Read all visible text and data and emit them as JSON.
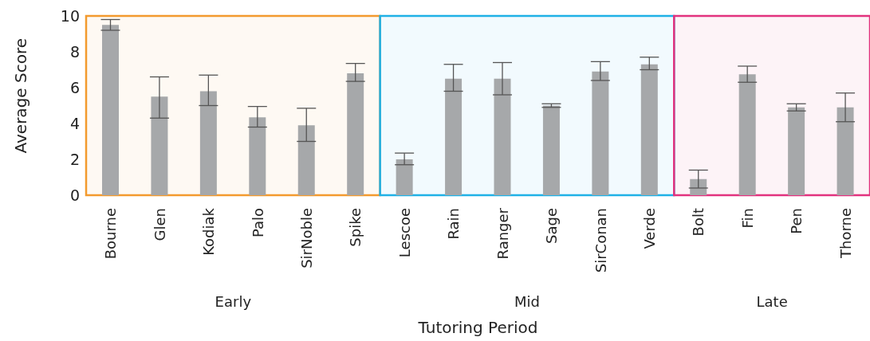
{
  "chart_data": {
    "type": "bar",
    "xlabel": "Tutoring Period",
    "ylabel": "Average Score",
    "categories": [
      "Bourne",
      "Glen",
      "Kodiak",
      "Palo",
      "SirNoble",
      "Spike",
      "Lescoe",
      "Rain",
      "Ranger",
      "Sage",
      "SirConan",
      "Verde",
      "Bolt",
      "Fin",
      "Pen",
      "Thorne"
    ],
    "values": [
      9.5,
      5.5,
      5.8,
      4.35,
      3.9,
      6.8,
      2.0,
      6.5,
      6.5,
      5.0,
      6.9,
      7.3,
      0.9,
      6.75,
      4.9,
      4.9
    ],
    "errors": [
      0.3,
      [
        4.3,
        6.6
      ],
      [
        5.0,
        6.7
      ],
      [
        3.8,
        4.95
      ],
      [
        3.0,
        4.85
      ],
      [
        6.35,
        7.35
      ],
      [
        1.7,
        2.35
      ],
      [
        5.8,
        7.3
      ],
      [
        5.6,
        7.4
      ],
      0.1,
      [
        6.4,
        7.45
      ],
      [
        7.0,
        7.7
      ],
      [
        0.4,
        1.4
      ],
      [
        6.3,
        7.2
      ],
      [
        4.7,
        5.1
      ],
      [
        4.1,
        5.7
      ]
    ],
    "color": "#a6a8aa",
    "ylim": [
      0,
      10
    ],
    "yticks": [
      0,
      2,
      4,
      6,
      8,
      10
    ],
    "grid": false,
    "legend": false,
    "annotations": [
      "Early",
      "Mid",
      "Late"
    ],
    "bands": [
      {
        "axis": "x",
        "from": "Bourne",
        "to": "Spike",
        "color": "#f39a2e"
      },
      {
        "axis": "x",
        "from": "Lescoe",
        "to": "Verde",
        "color": "#1fb1e6"
      },
      {
        "axis": "x",
        "from": "Bolt",
        "to": "Thorne",
        "color": "#e2327e"
      }
    ]
  }
}
